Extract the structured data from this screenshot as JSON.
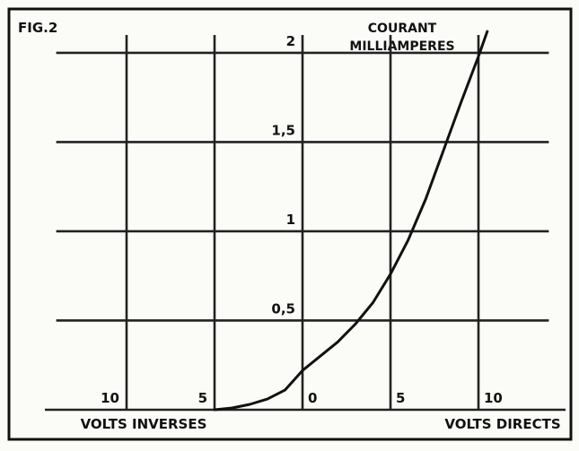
{
  "chart_data": {
    "type": "line",
    "title": "FIG.2",
    "y_label": [
      "COURANT",
      "MILLIAMPERES"
    ],
    "x_labels": [
      "VOLTS INVERSES",
      "VOLTS DIRECTS"
    ],
    "x": [
      -5,
      -4,
      -3,
      -2,
      -1,
      0,
      1,
      2,
      3,
      4,
      5,
      6,
      7,
      8,
      9,
      10,
      10.5
    ],
    "values": [
      0,
      0.01,
      0.03,
      0.06,
      0.11,
      0.22,
      0.3,
      0.38,
      0.48,
      0.6,
      0.76,
      0.95,
      1.18,
      1.45,
      1.72,
      1.98,
      2.12
    ],
    "color": "#111111",
    "xlim": [
      -14,
      14
    ],
    "xticks": [
      {
        "value": -10,
        "label": "10"
      },
      {
        "value": -5,
        "label": "5"
      },
      0,
      5,
      10
    ],
    "ylim": [
      0,
      2.1
    ],
    "yticks": [
      {
        "value": 0.5,
        "label": "0,5"
      },
      1,
      {
        "value": 1.5,
        "label": "1,5"
      },
      2
    ],
    "grid": true
  }
}
